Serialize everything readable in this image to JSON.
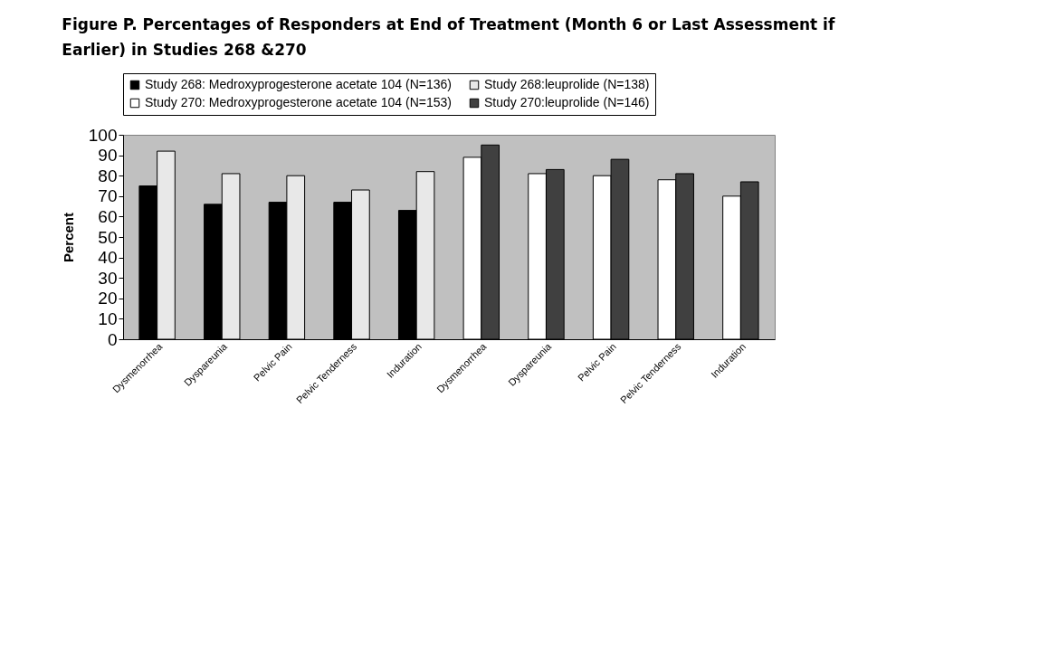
{
  "chart_data": {
    "type": "bar",
    "title": "Figure P. Percentages of Responders at End of Treatment (Month 6 or Last Assessment if Earlier) in Studies 268 &270",
    "ylabel": "Percent",
    "categories": [
      "Dysmenorrhea",
      "Dyspareunia",
      "Pelvic Pain",
      "Pelvic Tenderness",
      "Induration",
      "Dysmenorrhea",
      "Dyspareunia",
      "Pelvic Pain",
      "Pelvic Tenderness",
      "Induration"
    ],
    "series": [
      {
        "name": "Study 268:  Medroxyprogesterone acetate 104 (N=136)",
        "color": "#000000",
        "values": [
          75,
          66,
          67,
          67,
          63,
          null,
          null,
          null,
          null,
          null
        ]
      },
      {
        "name": "Study 268:leuprolide (N=138)",
        "color": "#e8e8e8",
        "values": [
          92,
          81,
          80,
          73,
          82,
          null,
          null,
          null,
          null,
          null
        ]
      },
      {
        "name": "Study 270:  Medroxyprogesterone acetate 104 (N=153)",
        "color": "#ffffff",
        "values": [
          null,
          null,
          null,
          null,
          null,
          89,
          81,
          80,
          78,
          70
        ]
      },
      {
        "name": "Study 270:leuprolide (N=146)",
        "color": "#404040",
        "values": [
          null,
          null,
          null,
          null,
          null,
          95,
          83,
          88,
          81,
          77
        ]
      }
    ],
    "ylim": [
      0,
      100
    ],
    "yticks": [
      0,
      10,
      20,
      30,
      40,
      50,
      60,
      70,
      80,
      90,
      100
    ],
    "grid": false,
    "legend": "top"
  }
}
